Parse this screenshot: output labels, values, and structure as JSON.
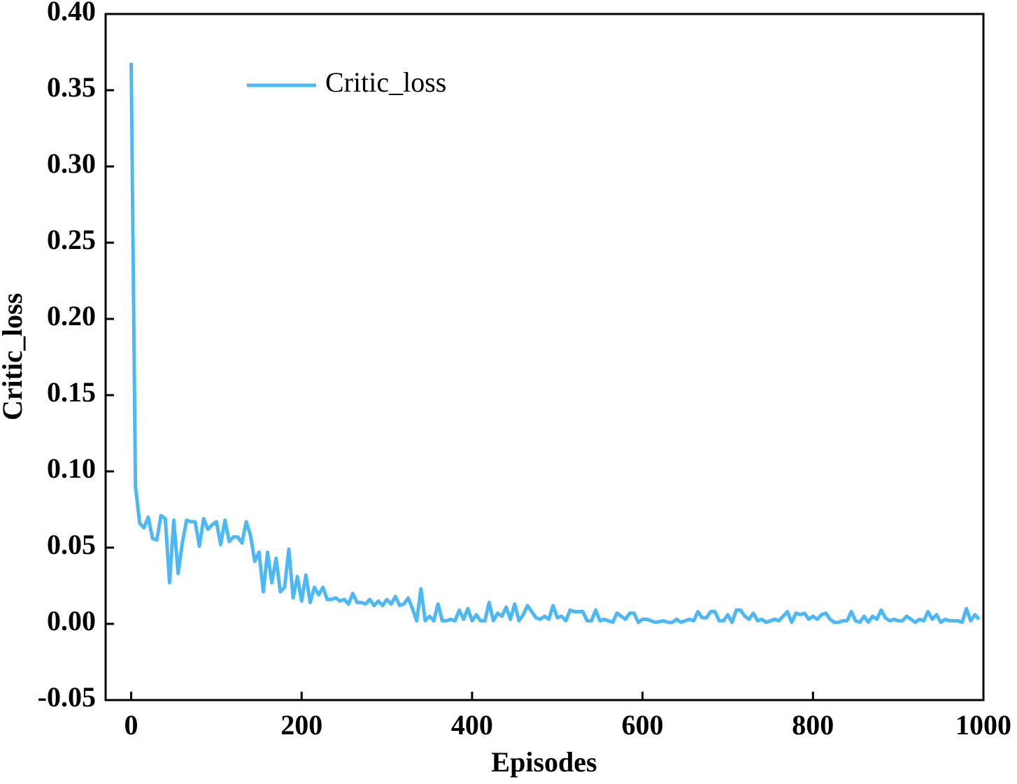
{
  "chart_data": {
    "type": "line",
    "xlabel": "Episodes",
    "ylabel": "Critic_loss",
    "x": [
      0,
      5,
      10,
      15,
      20,
      25,
      30,
      35,
      40,
      45,
      50,
      55,
      60,
      65,
      70,
      75,
      80,
      85,
      90,
      95,
      100,
      105,
      110,
      115,
      120,
      125,
      130,
      135,
      140,
      145,
      150,
      155,
      160,
      165,
      170,
      175,
      180,
      185,
      190,
      195,
      200,
      205,
      210,
      215,
      220,
      225,
      230,
      235,
      240,
      245,
      250,
      255,
      260,
      265,
      270,
      275,
      280,
      285,
      290,
      295,
      300,
      305,
      310,
      315,
      320,
      325,
      330,
      335,
      340,
      345,
      350,
      355,
      360,
      365,
      370,
      375,
      380,
      385,
      390,
      395,
      400,
      405,
      410,
      415,
      420,
      425,
      430,
      435,
      440,
      445,
      450,
      455,
      460,
      465,
      470,
      475,
      480,
      485,
      490,
      495,
      500,
      505,
      510,
      515,
      520,
      525,
      530,
      535,
      540,
      545,
      550,
      555,
      560,
      565,
      570,
      575,
      580,
      585,
      590,
      595,
      600,
      605,
      610,
      615,
      620,
      625,
      630,
      635,
      640,
      645,
      650,
      655,
      660,
      665,
      670,
      675,
      680,
      685,
      690,
      695,
      700,
      705,
      710,
      715,
      720,
      725,
      730,
      735,
      740,
      745,
      750,
      755,
      760,
      765,
      770,
      775,
      780,
      785,
      790,
      795,
      800,
      805,
      810,
      815,
      820,
      825,
      830,
      835,
      840,
      845,
      850,
      855,
      860,
      865,
      870,
      875,
      880,
      885,
      890,
      895,
      900,
      905,
      910,
      915,
      920,
      925,
      930,
      935,
      940,
      945,
      950,
      955,
      960,
      965,
      970,
      975,
      980,
      985,
      990,
      995
    ],
    "series": [
      {
        "name": "Critic_loss",
        "color": "#4db8f7",
        "values": [
          0.368,
          0.09,
          0.066,
          0.063,
          0.07,
          0.056,
          0.055,
          0.071,
          0.069,
          0.027,
          0.068,
          0.033,
          0.053,
          0.068,
          0.067,
          0.067,
          0.051,
          0.069,
          0.062,
          0.065,
          0.067,
          0.052,
          0.068,
          0.054,
          0.057,
          0.057,
          0.053,
          0.067,
          0.058,
          0.041,
          0.047,
          0.021,
          0.047,
          0.027,
          0.043,
          0.021,
          0.024,
          0.049,
          0.017,
          0.031,
          0.015,
          0.032,
          0.014,
          0.024,
          0.019,
          0.024,
          0.016,
          0.016,
          0.017,
          0.015,
          0.016,
          0.013,
          0.02,
          0.014,
          0.014,
          0.013,
          0.016,
          0.012,
          0.015,
          0.012,
          0.016,
          0.013,
          0.018,
          0.012,
          0.013,
          0.017,
          0.01,
          0.002,
          0.023,
          0.002,
          0.005,
          0.002,
          0.013,
          0.002,
          0.002,
          0.003,
          0.002,
          0.009,
          0.003,
          0.01,
          0.002,
          0.006,
          0.002,
          0.002,
          0.014,
          0.002,
          0.007,
          0.005,
          0.011,
          0.003,
          0.013,
          0.002,
          0.006,
          0.012,
          0.008,
          0.004,
          0.003,
          0.005,
          0.003,
          0.012,
          0.004,
          0.005,
          0.002,
          0.009,
          0.008,
          0.008,
          0.008,
          0.002,
          0.002,
          0.009,
          0.002,
          0.003,
          0.002,
          0.001,
          0.007,
          0.005,
          0.003,
          0.007,
          0.007,
          0.001,
          0.003,
          0.003,
          0.002,
          0.001,
          0.0015,
          0.002,
          0.001,
          0.001,
          0.003,
          0.001,
          0.002,
          0.003,
          0.002,
          0.008,
          0.004,
          0.004,
          0.008,
          0.008,
          0.002,
          0.002,
          0.006,
          0.001,
          0.009,
          0.009,
          0.005,
          0.003,
          0.007,
          0.002,
          0.003,
          0.001,
          0.002,
          0.003,
          0.002,
          0.005,
          0.008,
          0.001,
          0.007,
          0.006,
          0.007,
          0.003,
          0.005,
          0.003,
          0.006,
          0.007,
          0.003,
          0.001,
          0.001,
          0.002,
          0.002,
          0.008,
          0.002,
          0.001,
          0.005,
          0.001,
          0.005,
          0.003,
          0.009,
          0.004,
          0.002,
          0.003,
          0.002,
          0.002,
          0.005,
          0.003,
          0.001,
          0.003,
          0.002,
          0.008,
          0.003,
          0.006,
          0.001,
          0.003,
          0.002,
          0.002,
          0.002,
          0.001,
          0.01,
          0.002,
          0.006,
          0.003
        ]
      }
    ],
    "xlim": [
      -30,
      1000
    ],
    "xticks": [
      0,
      200,
      400,
      600,
      800,
      1000
    ],
    "ylim": [
      -0.05,
      0.4
    ],
    "yticks": [
      -0.05,
      {
        "value": 0,
        "label": "0.00"
      },
      0.05,
      {
        "value": 0.1,
        "label": "0.10"
      },
      0.15,
      {
        "value": 0.2,
        "label": "0.20"
      },
      0.25,
      {
        "value": 0.3,
        "label": "0.30"
      },
      0.35,
      {
        "value": 0.4,
        "label": "0.40"
      }
    ],
    "legend": "upper left"
  }
}
